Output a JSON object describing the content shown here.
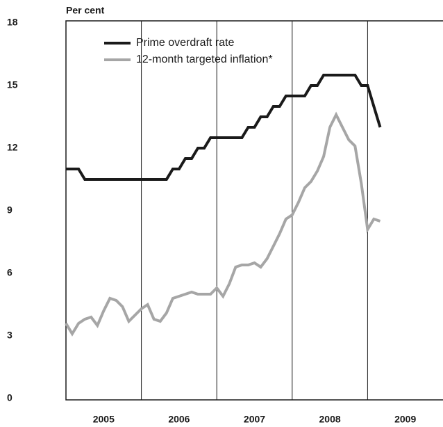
{
  "chart_data": {
    "type": "line",
    "y_label": "Per cent",
    "x": [
      2005,
      2005.083,
      2005.167,
      2005.25,
      2005.333,
      2005.417,
      2005.5,
      2005.583,
      2005.667,
      2005.75,
      2005.833,
      2005.917,
      2006,
      2006.083,
      2006.167,
      2006.25,
      2006.333,
      2006.417,
      2006.5,
      2006.583,
      2006.667,
      2006.75,
      2006.833,
      2006.917,
      2007,
      2007.083,
      2007.167,
      2007.25,
      2007.333,
      2007.417,
      2007.5,
      2007.583,
      2007.667,
      2007.75,
      2007.833,
      2007.917,
      2008,
      2008.083,
      2008.167,
      2008.25,
      2008.333,
      2008.417,
      2008.5,
      2008.583,
      2008.667,
      2008.75,
      2008.833,
      2008.917,
      2009,
      2009.083,
      2009.167
    ],
    "series": [
      {
        "name": "Prime overdraft rate",
        "color": "#1a1a1a",
        "values": [
          11,
          11,
          11,
          10.5,
          10.5,
          10.5,
          10.5,
          10.5,
          10.5,
          10.5,
          10.5,
          10.5,
          10.5,
          10.5,
          10.5,
          10.5,
          10.5,
          11,
          11,
          11.5,
          11.5,
          12,
          12,
          12.5,
          12.5,
          12.5,
          12.5,
          12.5,
          12.5,
          13,
          13,
          13.5,
          13.5,
          14,
          14,
          14.5,
          14.5,
          14.5,
          14.5,
          15,
          15,
          15.5,
          15.5,
          15.5,
          15.5,
          15.5,
          15.5,
          15,
          15,
          14,
          13
        ]
      },
      {
        "name": "12-month targeted inflation*",
        "color": "#a6a6a6",
        "values": [
          3.6,
          3.1,
          3.6,
          3.8,
          3.9,
          3.5,
          4.2,
          4.8,
          4.7,
          4.4,
          3.7,
          4.0,
          4.3,
          4.5,
          3.8,
          3.7,
          4.1,
          4.8,
          4.9,
          5.0,
          5.1,
          5.0,
          5.0,
          5.0,
          5.3,
          4.9,
          5.5,
          6.3,
          6.4,
          6.4,
          6.5,
          6.3,
          6.7,
          7.3,
          7.9,
          8.6,
          8.8,
          9.4,
          10.1,
          10.4,
          10.9,
          11.6,
          13.0,
          13.6,
          13.0,
          12.4,
          12.1,
          10.3,
          8.1,
          8.6,
          8.5
        ]
      }
    ],
    "xlim": [
      2005,
      2010
    ],
    "xticks": [
      2005,
      2006,
      2007,
      2008,
      2009
    ],
    "ylim": [
      0,
      18
    ],
    "yticks": [
      0,
      3,
      6,
      9,
      12,
      15,
      18
    ],
    "legend": "upper left"
  }
}
